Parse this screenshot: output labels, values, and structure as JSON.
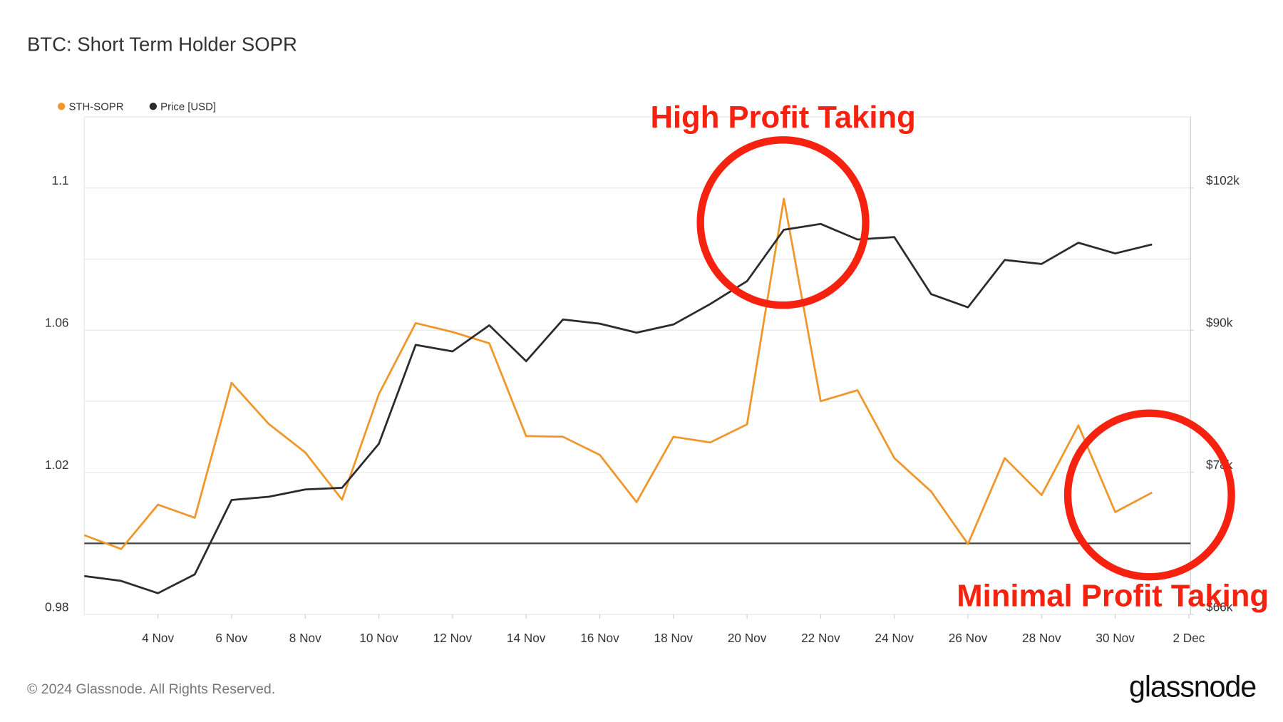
{
  "chart_data": {
    "type": "line",
    "title": "BTC: Short Term Holder SOPR",
    "x": [
      "2 Nov",
      "3 Nov",
      "4 Nov",
      "5 Nov",
      "6 Nov",
      "7 Nov",
      "8 Nov",
      "9 Nov",
      "10 Nov",
      "11 Nov",
      "12 Nov",
      "13 Nov",
      "14 Nov",
      "15 Nov",
      "16 Nov",
      "17 Nov",
      "18 Nov",
      "19 Nov",
      "20 Nov",
      "21 Nov",
      "22 Nov",
      "23 Nov",
      "24 Nov",
      "25 Nov",
      "26 Nov",
      "27 Nov",
      "28 Nov",
      "29 Nov",
      "30 Nov",
      "1 Dec"
    ],
    "series": [
      {
        "name": "STH-SOPR",
        "color": "#f0962a",
        "values": [
          1.0023,
          0.9984,
          1.0109,
          1.0072,
          1.0452,
          1.0337,
          1.0256,
          1.0123,
          1.042,
          1.062,
          1.0595,
          1.0563,
          1.0302,
          1.03,
          1.0249,
          1.0116,
          1.03,
          1.0284,
          1.0335,
          1.097,
          1.04,
          1.0431,
          1.024,
          1.0146,
          0.9998,
          1.024,
          1.0136,
          1.0332,
          1.0088,
          1.0143
        ]
      },
      {
        "name": "Price [USD]",
        "color": "#2b2b2e",
        "axis": "y2",
        "values": [
          69240,
          68830,
          67790,
          69380,
          75660,
          75930,
          76550,
          76690,
          80410,
          88760,
          88210,
          90410,
          87380,
          90900,
          90550,
          89790,
          90480,
          92210,
          94140,
          98480,
          98970,
          97660,
          97860,
          93040,
          91930,
          95930,
          95590,
          97380,
          96480,
          97240
        ]
      }
    ],
    "xlim": [
      "2 Nov",
      "2 Dec"
    ],
    "xticks": [
      "4 Nov",
      "6 Nov",
      "8 Nov",
      "10 Nov",
      "12 Nov",
      "14 Nov",
      "16 Nov",
      "18 Nov",
      "20 Nov",
      "22 Nov",
      "24 Nov",
      "26 Nov",
      "28 Nov",
      "30 Nov",
      "2 Dec"
    ],
    "ylim": [
      0.98,
      1.12
    ],
    "yticks": [
      0.98,
      1.02,
      1.06,
      1.1
    ],
    "y2lim": [
      66000,
      108000
    ],
    "y2ticks": [
      {
        "value": 66000,
        "label": "$66k"
      },
      {
        "value": 78000,
        "label": "$78k"
      },
      {
        "value": 90000,
        "label": "$90k"
      },
      {
        "value": 102000,
        "label": "$102k"
      }
    ],
    "reference_line": 1,
    "grid": true,
    "legend": "top-left",
    "annotations": [
      "High Profit Taking",
      "Minimal Profit Taking"
    ],
    "footer": "© 2024 Glassnode. All Rights Reserved.",
    "brand": "glassnode"
  }
}
